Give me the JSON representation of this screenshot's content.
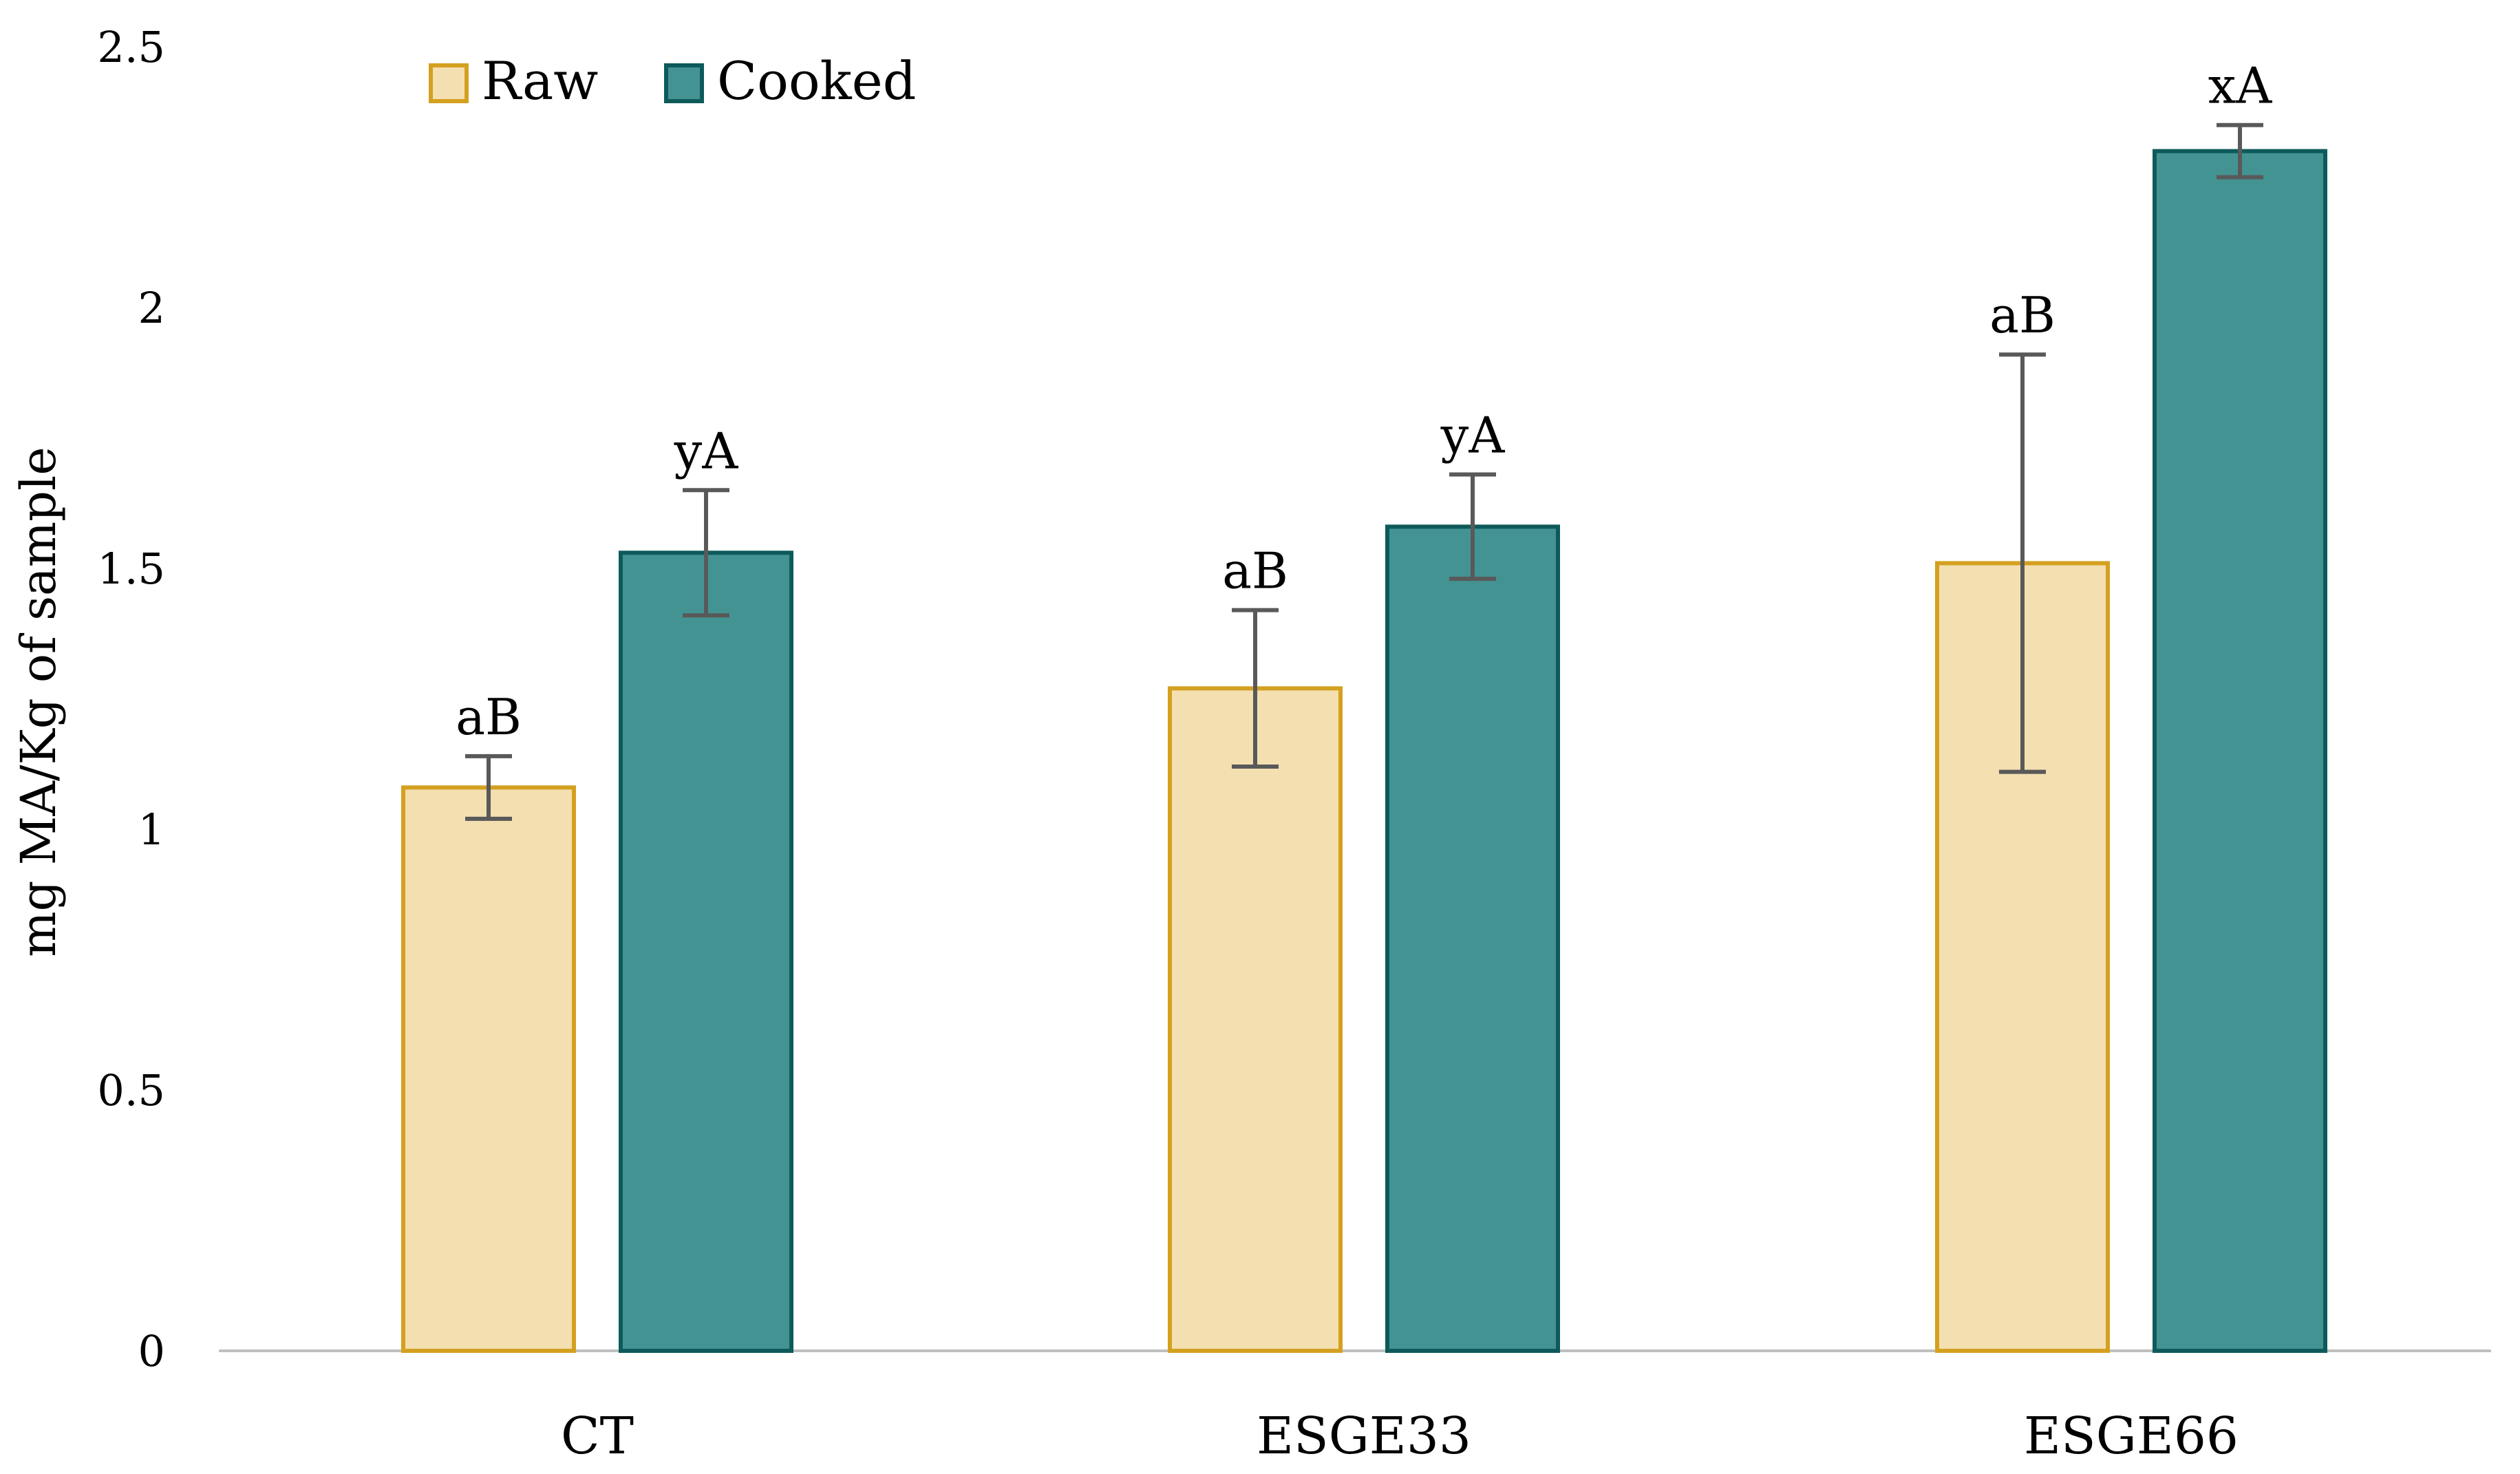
{
  "chart_data": {
    "type": "bar",
    "title": "",
    "xlabel": "",
    "ylabel": "mg MA/Kg of sample",
    "ylim": [
      0,
      2.5
    ],
    "yticks": [
      0,
      0.5,
      1,
      1.5,
      2,
      2.5
    ],
    "ytick_labels": [
      "0",
      "0.5",
      "1",
      "1.5",
      "2",
      "2.5"
    ],
    "grid": false,
    "legend_position": "top-left",
    "categories": [
      "CT",
      "ESGE33",
      "ESGE66"
    ],
    "series": [
      {
        "name": "Raw",
        "fill": "#f3dfb0",
        "stroke": "#d4a020",
        "values": [
          1.08,
          1.27,
          1.51
        ],
        "errors": [
          0.06,
          0.15,
          0.4
        ],
        "labels": [
          "aB",
          "aB",
          "aB"
        ]
      },
      {
        "name": "Cooked",
        "fill": "#449393",
        "stroke": "#0e5a5a",
        "values": [
          1.53,
          1.58,
          2.3
        ],
        "errors": [
          0.12,
          0.1,
          0.05
        ],
        "labels": [
          "yA",
          "yA",
          "xA"
        ]
      }
    ],
    "colors": {
      "axis": "#bfbfbf",
      "error_bar": "#595959"
    }
  }
}
